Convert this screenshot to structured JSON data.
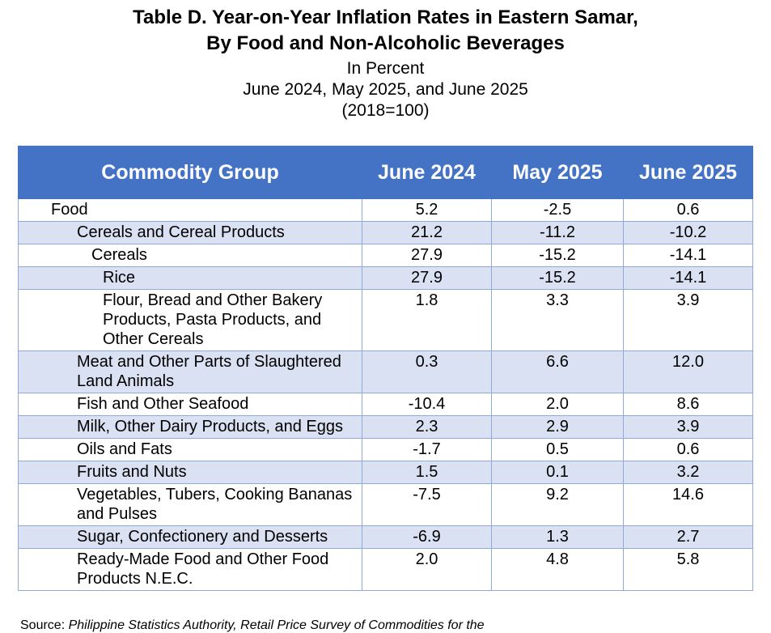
{
  "header": {
    "title_line1": "Table D. Year-on-Year Inflation Rates in Eastern Samar,",
    "title_line2": "By Food and Non-Alcoholic Beverages",
    "unit": "In Percent",
    "periods": "June 2024, May 2025, and June 2025",
    "base": "(2018=100)"
  },
  "table": {
    "columns": [
      "Commodity Group",
      "June 2024",
      "May 2025",
      "June 2025"
    ],
    "rows": [
      {
        "name": "Food",
        "level": 0,
        "jun2024": "5.2",
        "may2025": "-2.5",
        "jun2025": "0.6"
      },
      {
        "name": "Cereals and Cereal Products",
        "level": 1,
        "jun2024": "21.2",
        "may2025": "-11.2",
        "jun2025": "-10.2"
      },
      {
        "name": "Cereals",
        "level": 2,
        "jun2024": "27.9",
        "may2025": "-15.2",
        "jun2025": "-14.1"
      },
      {
        "name": "Rice",
        "level": 3,
        "jun2024": "27.9",
        "may2025": "-15.2",
        "jun2025": "-14.1"
      },
      {
        "name": "Flour, Bread and Other Bakery Products, Pasta Products, and Other Cereals",
        "level": 3,
        "jun2024": "1.8",
        "may2025": "3.3",
        "jun2025": "3.9"
      },
      {
        "name": "Meat and Other Parts of Slaughtered Land Animals",
        "level": 1,
        "jun2024": "0.3",
        "may2025": "6.6",
        "jun2025": "12.0"
      },
      {
        "name": "Fish and Other Seafood",
        "level": 1,
        "jun2024": "-10.4",
        "may2025": "2.0",
        "jun2025": "8.6"
      },
      {
        "name": "Milk, Other Dairy Products, and Eggs",
        "level": 1,
        "jun2024": "2.3",
        "may2025": "2.9",
        "jun2025": "3.9"
      },
      {
        "name": "Oils and Fats",
        "level": 1,
        "jun2024": "-1.7",
        "may2025": "0.5",
        "jun2025": "0.6"
      },
      {
        "name": "Fruits and Nuts",
        "level": 1,
        "jun2024": "1.5",
        "may2025": "0.1",
        "jun2025": "3.2"
      },
      {
        "name": "Vegetables, Tubers, Cooking Bananas and Pulses",
        "level": 1,
        "jun2024": "-7.5",
        "may2025": "9.2",
        "jun2025": "14.6"
      },
      {
        "name": "Sugar, Confectionery and Desserts",
        "level": 1,
        "jun2024": "-6.9",
        "may2025": "1.3",
        "jun2025": "2.7"
      },
      {
        "name": "Ready-Made Food and Other Food Products N.E.C.",
        "level": 1,
        "jun2024": "2.0",
        "may2025": "4.8",
        "jun2025": "5.8"
      }
    ]
  },
  "source": {
    "label": "Source:",
    "text": "Philippine Statistics Authority, Retail Price Survey of Commodities for the"
  },
  "colors": {
    "header_bg": "#4472c4",
    "alt_row_bg": "#d9e1f2",
    "border": "#8eaadb"
  }
}
